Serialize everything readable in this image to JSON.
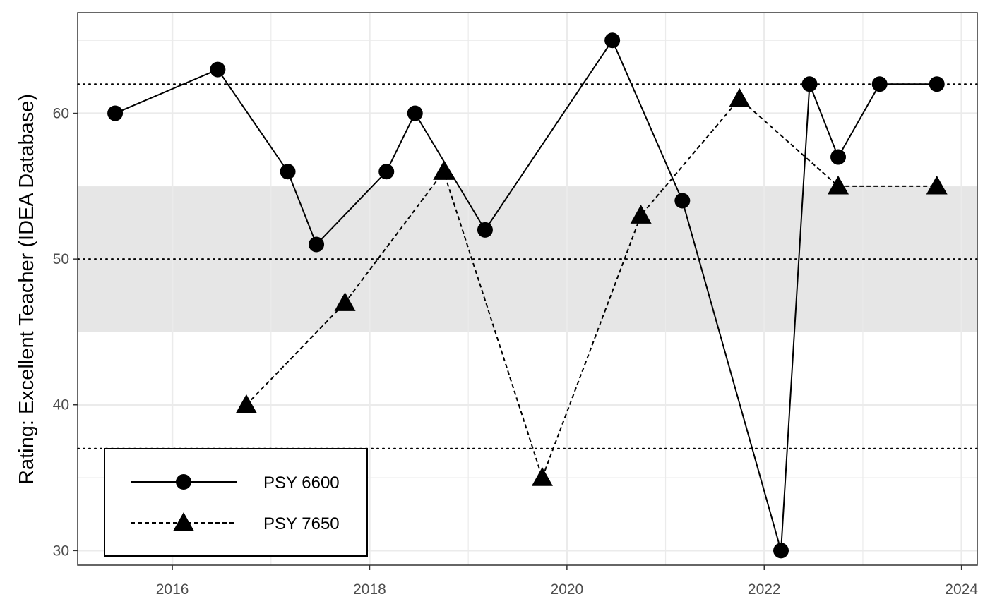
{
  "chart_data": {
    "type": "line",
    "title": "",
    "xlabel": "",
    "ylabel": "Rating: Excellent Teacher (IDEA Database)",
    "xlim": [
      2015.04,
      2024.16
    ],
    "ylim": [
      29.0,
      66.9
    ],
    "x_ticks": [
      2016,
      2018,
      2020,
      2022,
      2024
    ],
    "x_tick_labels": [
      "2016",
      "2018",
      "2020",
      "2022",
      "2024"
    ],
    "y_ticks": [
      30,
      40,
      50,
      60
    ],
    "y_tick_labels": [
      "30",
      "40",
      "50",
      "60"
    ],
    "grid": true,
    "shaded_band": {
      "y_min": 45,
      "y_max": 55,
      "color": "#e6e6e6"
    },
    "reference_lines": [
      {
        "y": 62,
        "style": "dotted"
      },
      {
        "y": 50,
        "style": "dotted"
      },
      {
        "y": 37,
        "style": "dotted"
      }
    ],
    "legend": {
      "position": "bottom-left",
      "boxed": true
    },
    "series": [
      {
        "name": "PSY 6600",
        "marker": "circle",
        "line_style": "solid",
        "color": "#000000",
        "x": [
          2015.42,
          2016.46,
          2017.17,
          2017.46,
          2018.17,
          2018.46,
          2019.17,
          2020.46,
          2021.17,
          2022.17,
          2022.46,
          2022.75,
          2023.17,
          2023.75
        ],
        "y": [
          60,
          63,
          56,
          51,
          56,
          60,
          52,
          65,
          54,
          30,
          62,
          57,
          62,
          62
        ]
      },
      {
        "name": "PSY 7650",
        "marker": "triangle",
        "line_style": "dashed",
        "color": "#000000",
        "x": [
          2016.75,
          2017.75,
          2018.75,
          2019.75,
          2020.75,
          2021.75,
          2022.75,
          2023.75
        ],
        "y": [
          40,
          47,
          56,
          35,
          53,
          61,
          55,
          55
        ]
      }
    ]
  }
}
